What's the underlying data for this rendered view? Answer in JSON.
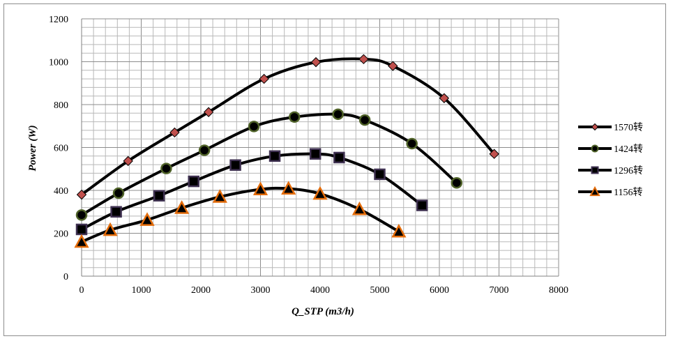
{
  "chart_data": {
    "type": "line",
    "title": "",
    "xlabel": "Q_STP (m3/h)",
    "ylabel": "Power (W)",
    "xlim": [
      0,
      8000
    ],
    "ylim": [
      0,
      1200
    ],
    "x_ticks": [
      "0",
      "1000",
      "2000",
      "3000",
      "4000",
      "5000",
      "6000",
      "7000",
      "8000"
    ],
    "y_ticks": [
      "0",
      "200",
      "400",
      "600",
      "800",
      "1000",
      "1200"
    ],
    "grid": true,
    "legend_position": "right",
    "series": [
      {
        "name": "1570转",
        "marker": "diamond",
        "marker_color": "#c0504d",
        "points": [
          [
            0,
            380
          ],
          [
            780,
            537
          ],
          [
            1560,
            670
          ],
          [
            2130,
            765
          ],
          [
            3060,
            920
          ],
          [
            3930,
            998
          ],
          [
            4730,
            1012
          ],
          [
            5220,
            980
          ],
          [
            6080,
            830
          ],
          [
            6920,
            570
          ]
        ]
      },
      {
        "name": "1424转",
        "marker": "circle",
        "marker_color": "#4f6228",
        "points": [
          [
            0,
            285
          ],
          [
            620,
            387
          ],
          [
            1420,
            502
          ],
          [
            2060,
            587
          ],
          [
            2890,
            698
          ],
          [
            3570,
            742
          ],
          [
            4300,
            755
          ],
          [
            4750,
            728
          ],
          [
            5540,
            618
          ],
          [
            6290,
            435
          ]
        ]
      },
      {
        "name": "1296转",
        "marker": "square",
        "marker_color": "#3f3151",
        "points": [
          [
            0,
            218
          ],
          [
            580,
            300
          ],
          [
            1300,
            375
          ],
          [
            1880,
            442
          ],
          [
            2580,
            518
          ],
          [
            3240,
            560
          ],
          [
            3920,
            570
          ],
          [
            4320,
            553
          ],
          [
            5000,
            475
          ],
          [
            5710,
            330
          ]
        ]
      },
      {
        "name": "1156转",
        "marker": "triangle",
        "marker_color": "#e46c0a",
        "points": [
          [
            0,
            160
          ],
          [
            480,
            215
          ],
          [
            1100,
            262
          ],
          [
            1680,
            318
          ],
          [
            2320,
            370
          ],
          [
            3000,
            405
          ],
          [
            3470,
            408
          ],
          [
            4000,
            384
          ],
          [
            4660,
            312
          ],
          [
            5320,
            208
          ]
        ]
      }
    ]
  }
}
